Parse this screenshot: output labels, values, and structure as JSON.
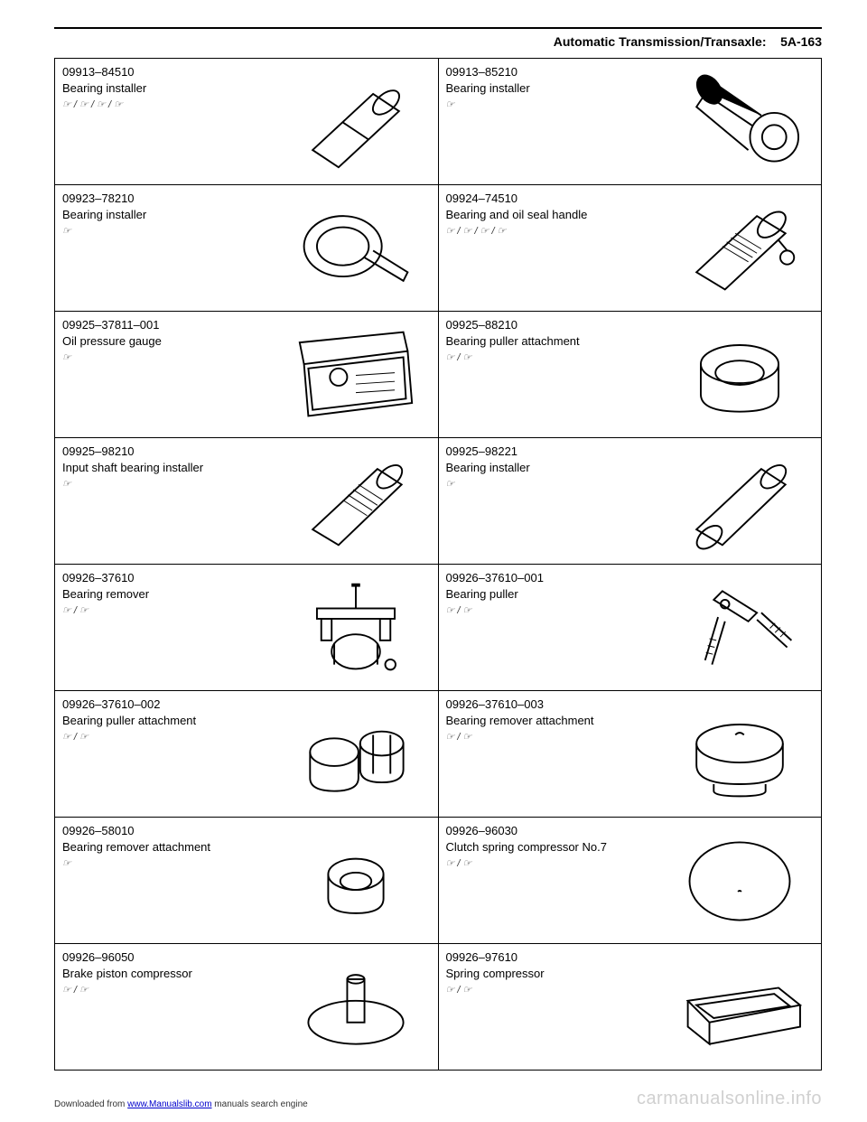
{
  "header": {
    "section": "Automatic Transmission/Transaxle:",
    "page": "5A-163"
  },
  "tools": [
    {
      "partNo": "09913–84510",
      "name": "Bearing installer",
      "refs": "☞ / ☞ / ☞ / ☞",
      "svg": "rod1"
    },
    {
      "partNo": "09913–85210",
      "name": "Bearing installer",
      "refs": "☞",
      "svg": "plug"
    },
    {
      "partNo": "09923–78210",
      "name": "Bearing installer",
      "refs": "☞",
      "svg": "cap-rod"
    },
    {
      "partNo": "09924–74510",
      "name": "Bearing and oil seal handle",
      "refs": "☞ / ☞ / ☞ / ☞",
      "svg": "knurl-rod"
    },
    {
      "partNo": "09925–37811–001",
      "name": "Oil pressure gauge",
      "refs": "☞",
      "svg": "gauge-case"
    },
    {
      "partNo": "09925–88210",
      "name": "Bearing puller attachment",
      "refs": "☞ / ☞",
      "svg": "cup"
    },
    {
      "partNo": "09925–98210",
      "name": "Input shaft bearing installer",
      "refs": "☞",
      "svg": "knurl-rod2"
    },
    {
      "partNo": "09925–98221",
      "name": "Bearing installer",
      "refs": "☞",
      "svg": "rod-plain"
    },
    {
      "partNo": "09926–37610",
      "name": "Bearing remover",
      "refs": "☞ / ☞",
      "svg": "press"
    },
    {
      "partNo": "09926–37610–001",
      "name": "Bearing puller",
      "refs": "☞ / ☞",
      "svg": "two-leg"
    },
    {
      "partNo": "09926–37610–002",
      "name": "Bearing puller attachment",
      "refs": "☞ / ☞",
      "svg": "split-collar"
    },
    {
      "partNo": "09926–37610–003",
      "name": "Bearing remover attachment",
      "refs": "☞ / ☞",
      "svg": "lid"
    },
    {
      "partNo": "09926–58010",
      "name": "Bearing remover attachment",
      "refs": "☞",
      "svg": "small-cup"
    },
    {
      "partNo": "09926–96030",
      "name": "Clutch spring compressor No.7",
      "refs": "☞ / ☞",
      "svg": "disc"
    },
    {
      "partNo": "09926–96050",
      "name": "Brake piston compressor",
      "refs": "☞ / ☞",
      "svg": "post-disc"
    },
    {
      "partNo": "09926–97610",
      "name": "Spring compressor",
      "refs": "☞ / ☞",
      "svg": "trough"
    }
  ],
  "footer": {
    "left_prefix": "Downloaded from ",
    "left_link": "www.Manualslib.com",
    "left_suffix": " manuals search engine",
    "right": "carmanualsonline.info"
  }
}
